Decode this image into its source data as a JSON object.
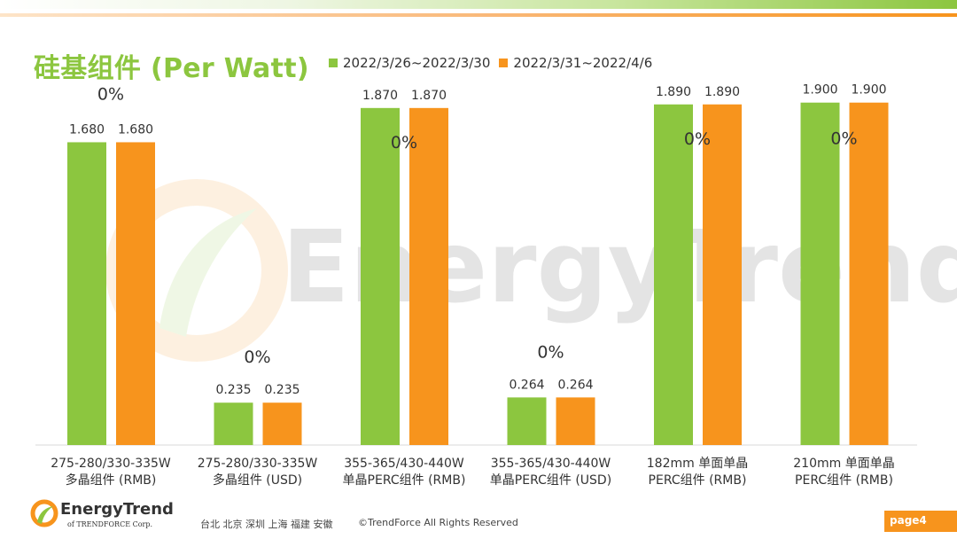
{
  "title": "硅基组件 (Per Watt)",
  "footer": {
    "logo_name": "EnergyTrend",
    "logo_sub": "of TRENDFORCE Corp.",
    "cities": "台北 北京 深圳 上海 福建 安徽",
    "copyright": "©TrendForce All Rights Reserved",
    "page": "page4"
  },
  "watermark_text": "EnergyTrend",
  "colors": {
    "green": "#8cc63f",
    "orange": "#f7941d",
    "title_green": "#8cc63f",
    "axis": "#d9d9d9",
    "text": "#333333"
  },
  "chart_data": {
    "type": "bar",
    "title": "硅基组件 (Per Watt)",
    "categories": [
      [
        "275-280/330-335W",
        "多晶组件 (RMB)"
      ],
      [
        "275-280/330-335W",
        "多晶组件 (USD)"
      ],
      [
        "355-365/430-440W",
        "单晶PERC组件 (RMB)"
      ],
      [
        "355-365/430-440W",
        "单晶PERC组件 (USD)"
      ],
      [
        "182mm 单面单晶",
        "PERC组件 (RMB)"
      ],
      [
        "210mm 单面单晶",
        "PERC组件 (RMB)"
      ]
    ],
    "series": [
      {
        "name": "2022/3/26~2022/3/30",
        "color": "#8cc63f",
        "values": [
          1.68,
          0.235,
          1.87,
          0.264,
          1.89,
          1.9
        ],
        "labels": [
          "1.680",
          "0.235",
          "1.870",
          "0.264",
          "1.890",
          "1.900"
        ]
      },
      {
        "name": "2022/3/31~2022/4/6",
        "color": "#f7941d",
        "values": [
          1.68,
          0.235,
          1.87,
          0.264,
          1.89,
          1.9
        ],
        "labels": [
          "1.680",
          "0.235",
          "1.870",
          "0.264",
          "1.890",
          "1.900"
        ]
      }
    ],
    "changes": [
      "0%",
      "0%",
      "0%",
      "0%",
      "0%",
      "0%"
    ],
    "grid": false,
    "legend_position": "top"
  }
}
